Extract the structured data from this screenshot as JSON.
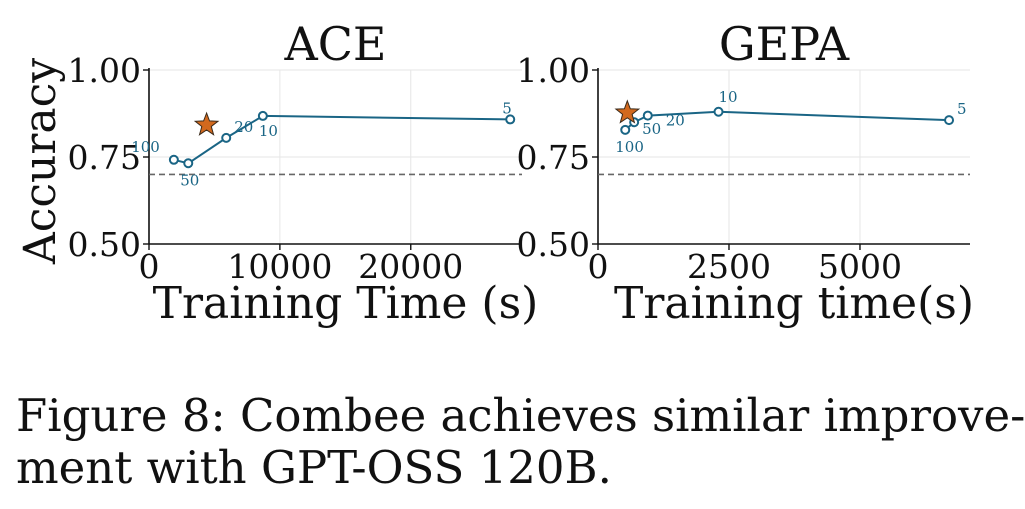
{
  "chart_data": [
    {
      "type": "line",
      "title": "ACE",
      "xlabel": "Training Time (s)",
      "ylabel": "Accuracy",
      "xlim": [
        0,
        28500
      ],
      "ylim": [
        0.5,
        1.0
      ],
      "xticks": [
        0,
        10000,
        20000
      ],
      "yticks": [
        0.5,
        0.75,
        1.0
      ],
      "xtick_labels": [
        "0",
        "10000",
        "20000"
      ],
      "ytick_labels": [
        "0.50",
        "0.75",
        "1.00"
      ],
      "grid": true,
      "baseline": 0.7,
      "series": [
        {
          "color": "#1a6585",
          "points": [
            {
              "x": 1900,
              "y": 0.742,
              "label": "100"
            },
            {
              "x": 3000,
              "y": 0.732,
              "label": "50"
            },
            {
              "x": 5900,
              "y": 0.805,
              "label": "20"
            },
            {
              "x": 8700,
              "y": 0.868,
              "label": "10"
            },
            {
              "x": 27600,
              "y": 0.858,
              "label": "5"
            }
          ]
        }
      ],
      "highlight": {
        "x": 4400,
        "y": 0.842,
        "marker": "star",
        "color": "#d2691e"
      }
    },
    {
      "type": "line",
      "title": "GEPA",
      "xlabel": "Training time(s)",
      "ylabel": "",
      "xlim": [
        0,
        7100
      ],
      "ylim": [
        0.5,
        1.0
      ],
      "xticks": [
        0,
        2500,
        5000
      ],
      "yticks": [
        0.5,
        0.75,
        1.0
      ],
      "xtick_labels": [
        "0",
        "2500",
        "5000"
      ],
      "ytick_labels": [
        "0.50",
        "0.75",
        "1.00"
      ],
      "grid": true,
      "baseline": 0.7,
      "series": [
        {
          "color": "#1a6585",
          "points": [
            {
              "x": 520,
              "y": 0.828,
              "label": "100"
            },
            {
              "x": 690,
              "y": 0.85,
              "label": "50"
            },
            {
              "x": 950,
              "y": 0.869,
              "label": "20"
            },
            {
              "x": 2300,
              "y": 0.88,
              "label": "10"
            },
            {
              "x": 6700,
              "y": 0.856,
              "label": "5"
            }
          ]
        }
      ],
      "highlight": {
        "x": 560,
        "y": 0.877,
        "marker": "star",
        "color": "#d2691e"
      }
    }
  ],
  "caption": {
    "line1": "Figure 8: Combee achieves similar improve-",
    "line2": "ment with GPT-OSS 120B."
  }
}
